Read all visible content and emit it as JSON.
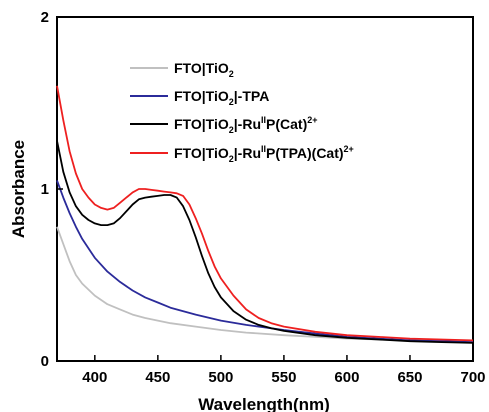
{
  "chart_data": {
    "type": "line",
    "xlabel": "Wavelength(nm)",
    "ylabel": "Absorbance",
    "xlim": [
      370,
      700
    ],
    "ylim": [
      0,
      2
    ],
    "x_ticks": [
      400,
      450,
      500,
      550,
      600,
      650,
      700
    ],
    "y_ticks": [
      0,
      1,
      2
    ],
    "grid": false,
    "legend_position": "top-right",
    "series": [
      {
        "name": "FTO|TiO2",
        "legend_parts": [
          {
            "t": "FTO|TiO"
          },
          {
            "t": "2",
            "sub": true
          }
        ],
        "color": "#c0c0c0",
        "points": [
          [
            370,
            0.78
          ],
          [
            375,
            0.68
          ],
          [
            380,
            0.58
          ],
          [
            385,
            0.5
          ],
          [
            390,
            0.45
          ],
          [
            400,
            0.38
          ],
          [
            410,
            0.33
          ],
          [
            420,
            0.3
          ],
          [
            430,
            0.27
          ],
          [
            440,
            0.25
          ],
          [
            450,
            0.235
          ],
          [
            460,
            0.22
          ],
          [
            480,
            0.2
          ],
          [
            500,
            0.18
          ],
          [
            520,
            0.165
          ],
          [
            550,
            0.15
          ],
          [
            575,
            0.14
          ],
          [
            600,
            0.13
          ],
          [
            625,
            0.125
          ],
          [
            650,
            0.12
          ],
          [
            675,
            0.115
          ],
          [
            700,
            0.11
          ]
        ]
      },
      {
        "name": "FTO|TiO2|-TPA",
        "legend_parts": [
          {
            "t": "FTO|TiO"
          },
          {
            "t": "2",
            "sub": true
          },
          {
            "t": "|-TPA"
          }
        ],
        "color": "#2b2b9a",
        "points": [
          [
            370,
            1.05
          ],
          [
            375,
            0.95
          ],
          [
            380,
            0.86
          ],
          [
            385,
            0.78
          ],
          [
            390,
            0.71
          ],
          [
            400,
            0.6
          ],
          [
            410,
            0.52
          ],
          [
            420,
            0.46
          ],
          [
            430,
            0.41
          ],
          [
            440,
            0.37
          ],
          [
            450,
            0.34
          ],
          [
            460,
            0.31
          ],
          [
            480,
            0.27
          ],
          [
            500,
            0.235
          ],
          [
            520,
            0.21
          ],
          [
            550,
            0.18
          ],
          [
            575,
            0.16
          ],
          [
            600,
            0.14
          ],
          [
            625,
            0.13
          ],
          [
            650,
            0.12
          ],
          [
            675,
            0.115
          ],
          [
            700,
            0.11
          ]
        ]
      },
      {
        "name": "FTO|TiO2|-RuIIP(Cat)2+",
        "legend_parts": [
          {
            "t": "FTO|TiO"
          },
          {
            "t": "2",
            "sub": true
          },
          {
            "t": "|-Ru"
          },
          {
            "t": "II",
            "sup": true
          },
          {
            "t": "P(Cat)"
          },
          {
            "t": "2+",
            "sup": true
          }
        ],
        "color": "#000000",
        "points": [
          [
            370,
            1.28
          ],
          [
            375,
            1.1
          ],
          [
            380,
            0.98
          ],
          [
            385,
            0.9
          ],
          [
            390,
            0.85
          ],
          [
            395,
            0.82
          ],
          [
            400,
            0.8
          ],
          [
            405,
            0.79
          ],
          [
            410,
            0.79
          ],
          [
            415,
            0.8
          ],
          [
            420,
            0.83
          ],
          [
            425,
            0.87
          ],
          [
            430,
            0.91
          ],
          [
            435,
            0.94
          ],
          [
            440,
            0.95
          ],
          [
            445,
            0.955
          ],
          [
            450,
            0.96
          ],
          [
            455,
            0.965
          ],
          [
            460,
            0.965
          ],
          [
            465,
            0.95
          ],
          [
            470,
            0.9
          ],
          [
            475,
            0.82
          ],
          [
            480,
            0.72
          ],
          [
            485,
            0.61
          ],
          [
            490,
            0.51
          ],
          [
            495,
            0.43
          ],
          [
            500,
            0.37
          ],
          [
            510,
            0.29
          ],
          [
            520,
            0.24
          ],
          [
            530,
            0.21
          ],
          [
            540,
            0.19
          ],
          [
            550,
            0.175
          ],
          [
            575,
            0.15
          ],
          [
            600,
            0.135
          ],
          [
            625,
            0.125
          ],
          [
            650,
            0.115
          ],
          [
            675,
            0.11
          ],
          [
            700,
            0.105
          ]
        ]
      },
      {
        "name": "FTO|TiO2|-RuIIP(TPA)(Cat)2+",
        "legend_parts": [
          {
            "t": "FTO|TiO"
          },
          {
            "t": "2",
            "sub": true
          },
          {
            "t": "|-Ru"
          },
          {
            "t": "II",
            "sup": true
          },
          {
            "t": "P(TPA)(Cat)"
          },
          {
            "t": "2+",
            "sup": true
          }
        ],
        "color": "#ee2020",
        "points": [
          [
            370,
            1.6
          ],
          [
            375,
            1.4
          ],
          [
            380,
            1.22
          ],
          [
            385,
            1.09
          ],
          [
            390,
            1.0
          ],
          [
            395,
            0.95
          ],
          [
            400,
            0.91
          ],
          [
            405,
            0.89
          ],
          [
            410,
            0.88
          ],
          [
            415,
            0.89
          ],
          [
            420,
            0.92
          ],
          [
            425,
            0.95
          ],
          [
            430,
            0.98
          ],
          [
            435,
            1.0
          ],
          [
            440,
            1.0
          ],
          [
            445,
            0.995
          ],
          [
            450,
            0.99
          ],
          [
            455,
            0.985
          ],
          [
            460,
            0.98
          ],
          [
            465,
            0.975
          ],
          [
            470,
            0.96
          ],
          [
            475,
            0.91
          ],
          [
            480,
            0.83
          ],
          [
            485,
            0.74
          ],
          [
            490,
            0.64
          ],
          [
            495,
            0.55
          ],
          [
            500,
            0.48
          ],
          [
            510,
            0.38
          ],
          [
            520,
            0.3
          ],
          [
            530,
            0.25
          ],
          [
            540,
            0.22
          ],
          [
            550,
            0.2
          ],
          [
            575,
            0.17
          ],
          [
            600,
            0.15
          ],
          [
            625,
            0.14
          ],
          [
            650,
            0.13
          ],
          [
            675,
            0.125
          ],
          [
            700,
            0.12
          ]
        ]
      }
    ]
  }
}
